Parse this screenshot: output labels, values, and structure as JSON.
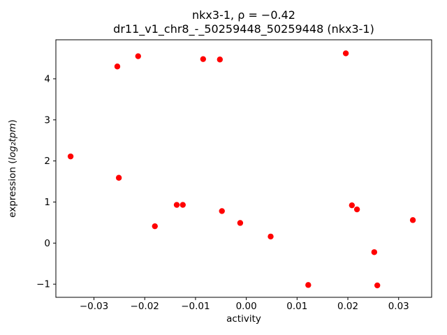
{
  "chart_data": {
    "type": "scatter",
    "title_line1": "nkx3-1, ρ = −0.42",
    "title_line2": "dr11_v1_chr8_-_50259448_50259448 (nkx3-1)",
    "xlabel": "activity",
    "ylabel_prefix": "expression (",
    "ylabel_math": "log₂tpm",
    "ylabel_suffix": ")",
    "marker_color": "#ff0000",
    "grid": false,
    "legend": "none",
    "xlim": [
      -0.0375,
      0.0365
    ],
    "ylim": [
      -1.32,
      4.95
    ],
    "xticks": [
      -0.03,
      -0.02,
      -0.01,
      0.0,
      0.01,
      0.02,
      0.03
    ],
    "yticks": [
      -1,
      0,
      1,
      2,
      3,
      4
    ],
    "points": [
      [
        -0.0346,
        2.11
      ],
      [
        -0.0254,
        4.3
      ],
      [
        -0.0251,
        1.59
      ],
      [
        -0.0213,
        4.55
      ],
      [
        -0.018,
        0.41
      ],
      [
        -0.0137,
        0.93
      ],
      [
        -0.0125,
        0.93
      ],
      [
        -0.0085,
        4.48
      ],
      [
        -0.0052,
        4.47
      ],
      [
        -0.0048,
        0.78
      ],
      [
        -0.0012,
        0.49
      ],
      [
        0.0048,
        0.16
      ],
      [
        0.0122,
        -1.02
      ],
      [
        0.0196,
        4.62
      ],
      [
        0.0208,
        0.92
      ],
      [
        0.0218,
        0.82
      ],
      [
        0.0252,
        -0.22
      ],
      [
        0.0258,
        -1.03
      ],
      [
        0.0328,
        0.56
      ]
    ]
  }
}
